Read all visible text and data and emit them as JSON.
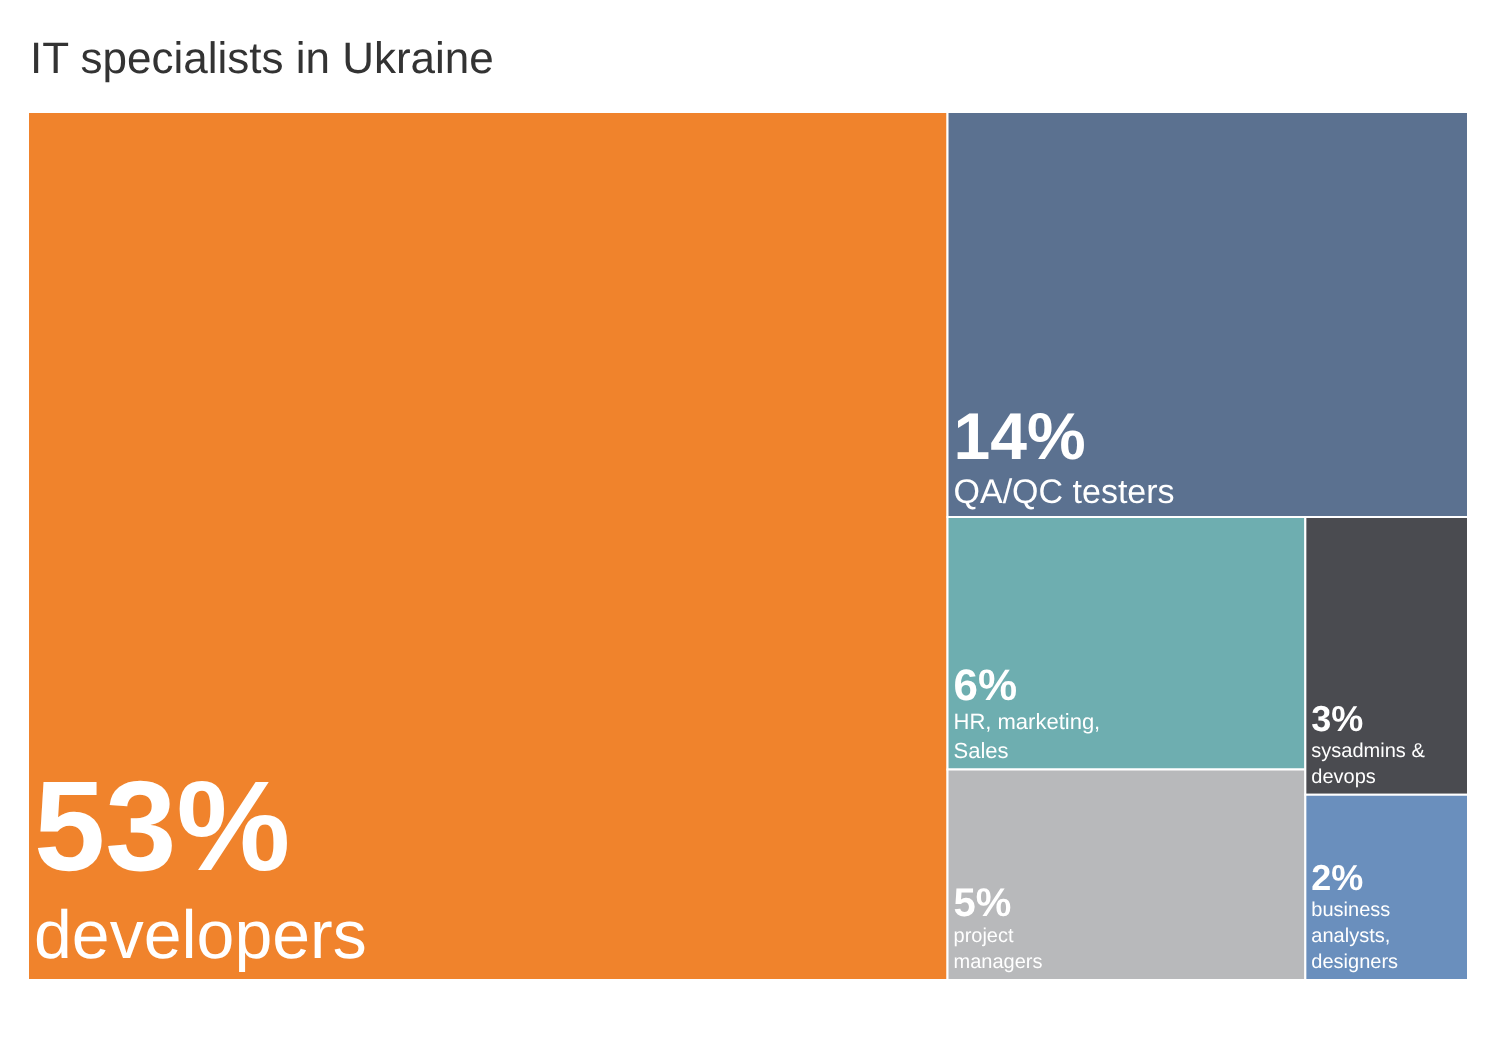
{
  "chart_data": {
    "type": "other",
    "title": "IT specialists in Ukraine",
    "categories": [
      "developers",
      "QA/QC testers",
      "HR, marketing, Sales",
      "project managers",
      "sysadmins & devops",
      "business analysts, designers"
    ],
    "values": [
      53,
      14,
      6,
      5,
      3,
      2
    ],
    "value_labels": [
      "53%",
      "14%",
      "6%",
      "5%",
      "3%",
      "2%"
    ],
    "colors": [
      "#f0832c",
      "#5b7190",
      "#6eaeb0",
      "#b8b9bb",
      "#4a4b50",
      "#6a8fbd"
    ]
  }
}
